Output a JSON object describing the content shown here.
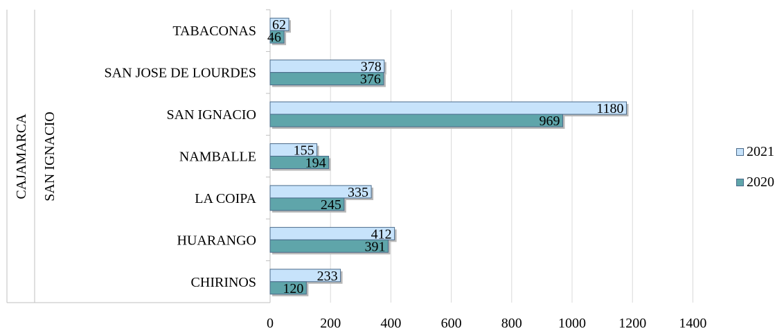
{
  "chart_data": {
    "type": "bar",
    "orientation": "horizontal",
    "group_labels": [
      "CAJAMARCA",
      "SAN IGNACIO"
    ],
    "categories": [
      "CHIRINOS",
      "HUARANGO",
      "LA COIPA",
      "NAMBALLE",
      "SAN IGNACIO",
      "SAN JOSE DE LOURDES",
      "TABACONAS"
    ],
    "series": [
      {
        "name": "2021",
        "values": [
          233,
          412,
          335,
          155,
          1180,
          378,
          62
        ],
        "color": "#c7e3fb"
      },
      {
        "name": "2020",
        "values": [
          120,
          391,
          245,
          194,
          969,
          376,
          46
        ],
        "color": "#5fa5aa"
      }
    ],
    "xlim": [
      0,
      1400
    ],
    "xticks": [
      "0",
      "200",
      "400",
      "600",
      "800",
      "1000",
      "1200",
      "1400"
    ],
    "grid": true,
    "legend_position": "right"
  }
}
